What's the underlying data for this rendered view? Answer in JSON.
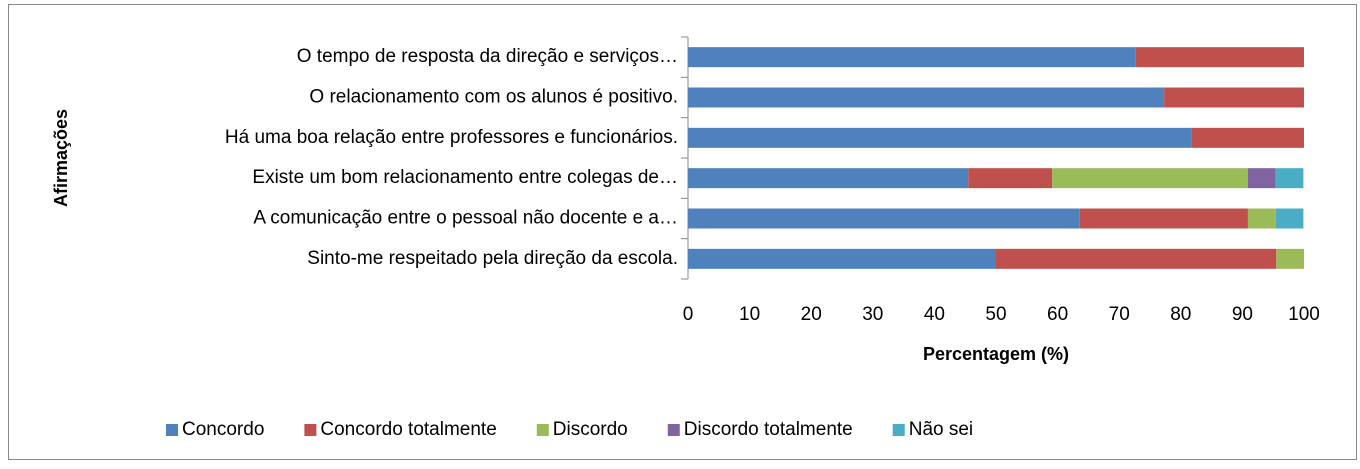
{
  "chart_data": {
    "type": "stacked_barh",
    "xlabel": "Percentagem (%)",
    "ylabel": "Afirmações",
    "categories": [
      "O tempo de resposta da direção e serviços…",
      "O relacionamento com os alunos é positivo.",
      "Há uma boa relação entre professores e funcionários.",
      "Existe um bom relacionamento entre colegas de…",
      "A comunicação entre o pessoal não docente e a…",
      "Sinto-me respeitado pela direção da escola."
    ],
    "series": [
      {
        "name": "Concordo",
        "color": "#4f81bd",
        "values": [
          72.7,
          77.3,
          81.8,
          45.5,
          63.6,
          50
        ]
      },
      {
        "name": "Concordo totalmente",
        "color": "#c0504d",
        "values": [
          27.3,
          22.7,
          18.2,
          13.6,
          27.3,
          45.5
        ]
      },
      {
        "name": "Discordo",
        "color": "#9bbb59",
        "values": [
          0,
          0,
          0,
          31.8,
          4.5,
          4.5
        ]
      },
      {
        "name": "Discordo totalmente",
        "color": "#8064a2",
        "values": [
          0,
          0,
          0,
          4.5,
          0,
          0
        ]
      },
      {
        "name": "Não sei",
        "color": "#4bacc6",
        "values": [
          0,
          0,
          0,
          4.5,
          4.5,
          0
        ]
      }
    ],
    "xlim": [
      0,
      100
    ],
    "xticks": [
      0,
      10,
      20,
      30,
      40,
      50,
      60,
      70,
      80,
      90,
      100
    ],
    "legend": "bottom"
  }
}
